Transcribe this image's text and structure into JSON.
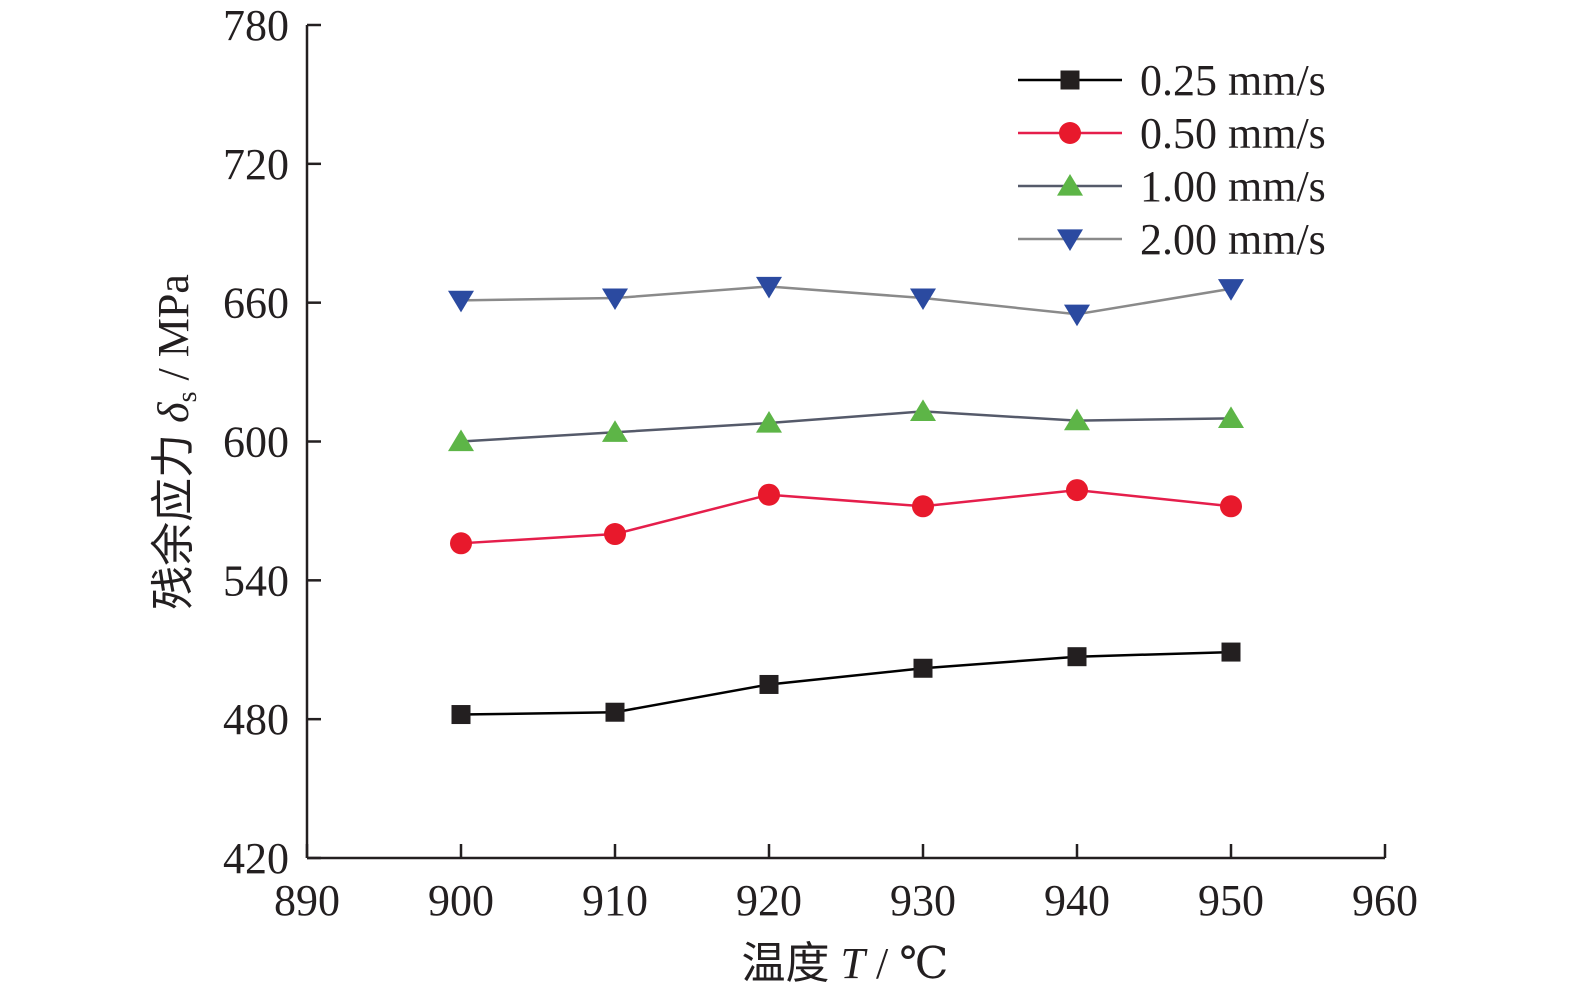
{
  "chart_data": {
    "type": "line",
    "title": "",
    "xlabel": {
      "prefix": "温度 ",
      "symbol": "T",
      "suffix": " / ℃"
    },
    "ylabel": {
      "prefix": "残余应力 ",
      "symbol": "δ",
      "subscript": "s",
      "suffix": " / MPa"
    },
    "xlim": [
      890,
      960
    ],
    "ylim": [
      420,
      780
    ],
    "xticks": [
      890,
      900,
      910,
      920,
      930,
      940,
      950,
      960
    ],
    "yticks": [
      420,
      480,
      540,
      600,
      660,
      720,
      780
    ],
    "x": [
      900,
      910,
      920,
      930,
      940,
      950
    ],
    "grid": false,
    "legend_position": "top-right",
    "series": [
      {
        "name": "0.25 mm/s",
        "values": [
          482,
          483,
          495,
          502,
          507,
          509
        ],
        "line_color": "#000000",
        "marker_color": "#231f20",
        "marker": "square"
      },
      {
        "name": "0.50 mm/s",
        "values": [
          556,
          560,
          577,
          572,
          579,
          572
        ],
        "line_color": "#e51e4b",
        "marker_color": "#e8192c",
        "marker": "circle"
      },
      {
        "name": "1.00 mm/s",
        "values": [
          600,
          604,
          608,
          613,
          609,
          610
        ],
        "line_color": "#555a6a",
        "marker_color": "#5db547",
        "marker": "triangle-up"
      },
      {
        "name": "2.00 mm/s",
        "values": [
          661,
          662,
          667,
          662,
          655,
          666
        ],
        "line_color": "#8a8a8a",
        "marker_color": "#2b4aa0",
        "marker": "triangle-down"
      }
    ]
  }
}
